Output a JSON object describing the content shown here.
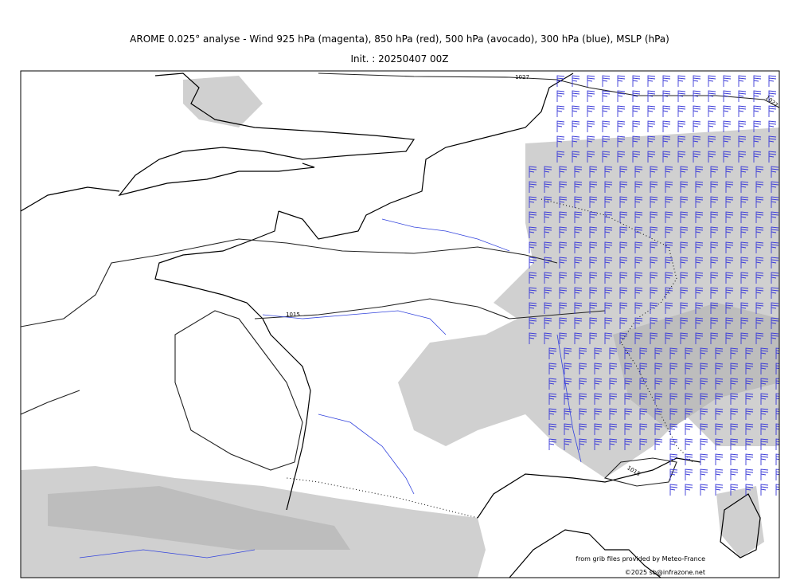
{
  "header": {
    "title": "AROME 0.025° analyse - Wind 925 hPa (magenta), 850 hPa (red), 500 hPa (avocado), 300 hPa (blue), MSLP (hPa)",
    "subtitle": "Init. : 20250407 00Z"
  },
  "map": {
    "isobar_labels": [
      "1027",
      "1015",
      "1015",
      "1027"
    ]
  },
  "footer": {
    "credit": "from grib files provided by Meteo-France",
    "copyright": "©2025 sb@infrazone.net"
  }
}
